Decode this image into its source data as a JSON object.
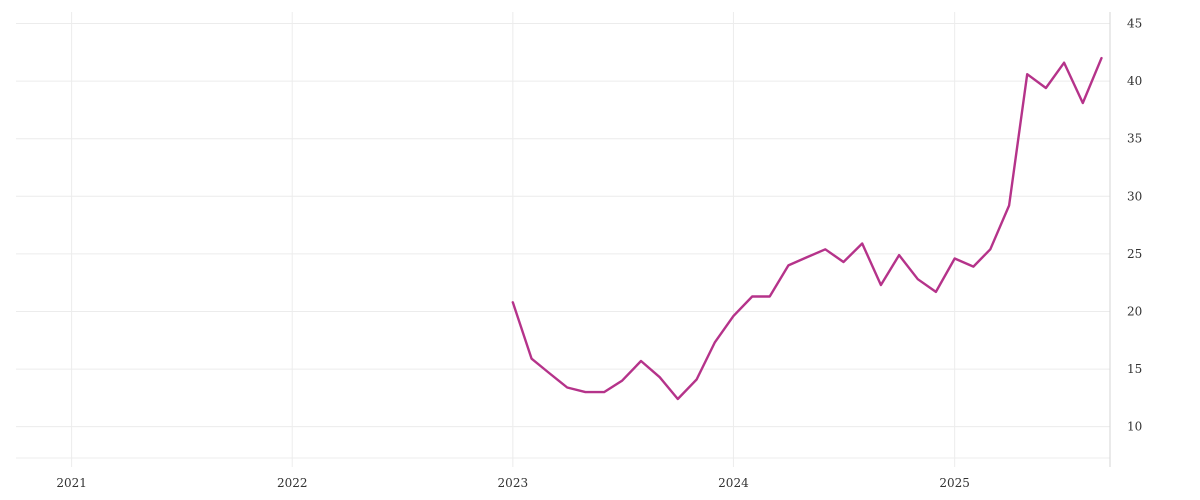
{
  "colors": {
    "series": "#b5338a",
    "grid": "#ececec",
    "axis": "#d6d6d6",
    "text": "#333333"
  },
  "chart_data": {
    "type": "line",
    "title": "",
    "xlabel": "",
    "ylabel": "",
    "x_axis": "time",
    "xlim": [
      "2020-10-01",
      "2025-09-15"
    ],
    "ylim": [
      6.5,
      46
    ],
    "y_axis_position": "right",
    "grid": true,
    "legend": "none",
    "x_ticks": [
      "2021",
      "2022",
      "2023",
      "2024",
      "2025"
    ],
    "y_ticks": [
      10,
      15,
      20,
      25,
      30,
      35,
      40,
      45
    ],
    "series": [
      {
        "color": "#b5338a",
        "x": [
          "2023-01-01",
          "2023-02-01",
          "2023-03-01",
          "2023-04-01",
          "2023-05-01",
          "2023-06-01",
          "2023-07-01",
          "2023-08-01",
          "2023-09-01",
          "2023-10-01",
          "2023-11-01",
          "2023-12-01",
          "2024-01-01",
          "2024-02-01",
          "2024-03-01",
          "2024-04-01",
          "2024-05-01",
          "2024-06-01",
          "2024-07-01",
          "2024-08-01",
          "2024-09-01",
          "2024-10-01",
          "2024-11-01",
          "2024-12-01",
          "2025-01-01",
          "2025-02-01",
          "2025-03-01",
          "2025-04-01",
          "2025-05-01",
          "2025-06-01",
          "2025-07-01",
          "2025-08-01",
          "2025-09-01"
        ],
        "values": [
          20.8,
          15.9,
          14.7,
          13.4,
          13.0,
          13.0,
          14.0,
          15.7,
          14.3,
          12.4,
          14.1,
          17.3,
          19.6,
          21.3,
          21.3,
          24.0,
          24.7,
          25.4,
          24.3,
          25.9,
          22.3,
          24.9,
          22.8,
          21.7,
          24.6,
          23.9,
          25.4,
          29.2,
          40.6,
          39.4,
          41.6,
          38.1,
          42.0
        ]
      }
    ]
  }
}
